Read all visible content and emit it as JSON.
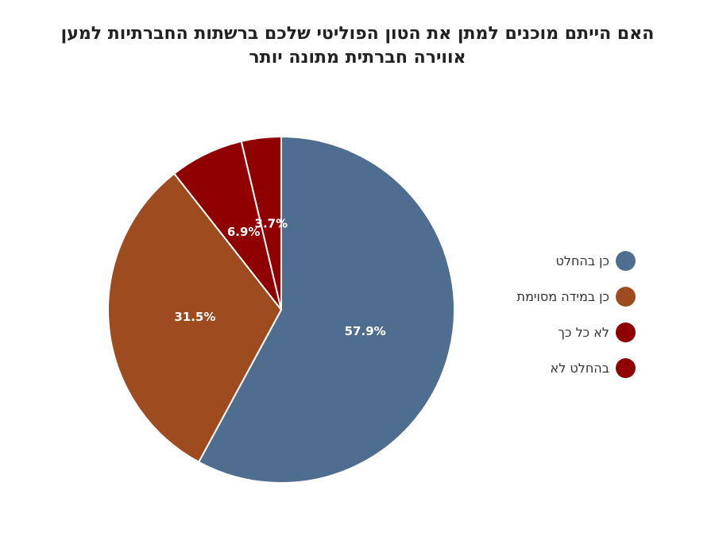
{
  "chart_data": {
    "type": "pie",
    "title": "האם הייתם מוכנים למתן את הטון הפוליטי שלכם ברשתות החברתיות למען אווירה חברתית מתונה יותר",
    "slices": [
      {
        "name": "כן בהחלט",
        "value": 57.9,
        "label": "57.9%",
        "color": "#4f6d8f"
      },
      {
        "name": "כן במידה מסוימת",
        "value": 31.5,
        "label": "31.5%",
        "color": "#9e4b1f"
      },
      {
        "name": "לא כל כך",
        "value": 6.9,
        "label": "6.9%",
        "color": "#910000"
      },
      {
        "name": "בהחלט לא",
        "value": 3.7,
        "label": "3.7%",
        "color": "#910000"
      }
    ],
    "legend_position": "right"
  }
}
